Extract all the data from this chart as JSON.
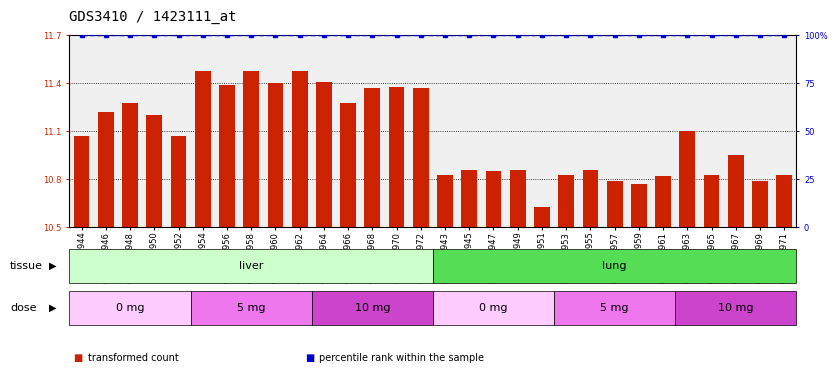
{
  "title": "GDS3410 / 1423111_at",
  "samples": [
    "GSM326944",
    "GSM326946",
    "GSM326948",
    "GSM326950",
    "GSM326952",
    "GSM326954",
    "GSM326956",
    "GSM326958",
    "GSM326960",
    "GSM326962",
    "GSM326964",
    "GSM326966",
    "GSM326968",
    "GSM326970",
    "GSM326972",
    "GSM326943",
    "GSM326945",
    "GSM326947",
    "GSM326949",
    "GSM326951",
    "GSM326953",
    "GSM326955",
    "GSM326957",
    "GSM326959",
    "GSM326961",
    "GSM326963",
    "GSM326965",
    "GSM326967",
    "GSM326969",
    "GSM326971"
  ],
  "values": [
    11.07,
    11.22,
    11.28,
    11.2,
    11.07,
    11.48,
    11.39,
    11.48,
    11.4,
    11.48,
    11.41,
    11.28,
    11.37,
    11.38,
    11.37,
    10.83,
    10.86,
    10.85,
    10.86,
    10.63,
    10.83,
    10.86,
    10.79,
    10.77,
    10.82,
    11.1,
    10.83,
    10.95,
    10.79,
    10.83
  ],
  "percentile_values": [
    100,
    100,
    100,
    100,
    100,
    100,
    100,
    100,
    100,
    100,
    100,
    100,
    100,
    100,
    100,
    100,
    100,
    100,
    100,
    100,
    100,
    100,
    100,
    100,
    100,
    100,
    100,
    100,
    100,
    100
  ],
  "bar_color": "#cc2200",
  "percentile_color": "#0000cc",
  "ylim_left": [
    10.5,
    11.7
  ],
  "ylim_right": [
    0,
    100
  ],
  "yticks_left": [
    10.5,
    10.8,
    11.1,
    11.4,
    11.7
  ],
  "yticks_right": [
    0,
    25,
    50,
    75,
    100
  ],
  "ytick_labels_left": [
    "10.5",
    "10.8",
    "11.1",
    "11.4",
    "11.7"
  ],
  "ytick_labels_right": [
    "0",
    "25",
    "50",
    "75",
    "100%"
  ],
  "grid_lines": [
    10.8,
    11.1,
    11.4
  ],
  "tissue_groups": [
    {
      "label": "liver",
      "start": 0,
      "end": 15,
      "color": "#ccffcc"
    },
    {
      "label": "lung",
      "start": 15,
      "end": 30,
      "color": "#55dd55"
    }
  ],
  "dose_groups": [
    {
      "label": "0 mg",
      "start": 0,
      "end": 5,
      "color": "#ffccff"
    },
    {
      "label": "5 mg",
      "start": 5,
      "end": 10,
      "color": "#ee77ee"
    },
    {
      "label": "10 mg",
      "start": 10,
      "end": 15,
      "color": "#cc44cc"
    },
    {
      "label": "0 mg",
      "start": 15,
      "end": 20,
      "color": "#ffccff"
    },
    {
      "label": "5 mg",
      "start": 20,
      "end": 25,
      "color": "#ee77ee"
    },
    {
      "label": "10 mg",
      "start": 25,
      "end": 30,
      "color": "#cc44cc"
    }
  ],
  "tissue_label": "tissue",
  "dose_label": "dose",
  "legend_items": [
    {
      "label": "transformed count",
      "color": "#cc2200"
    },
    {
      "label": "percentile rank within the sample",
      "color": "#0000cc"
    }
  ],
  "chart_bg": "#f0f0f0",
  "title_fontsize": 10,
  "tick_fontsize": 6,
  "label_fontsize": 8,
  "row_label_fontsize": 8,
  "legend_fontsize": 7
}
